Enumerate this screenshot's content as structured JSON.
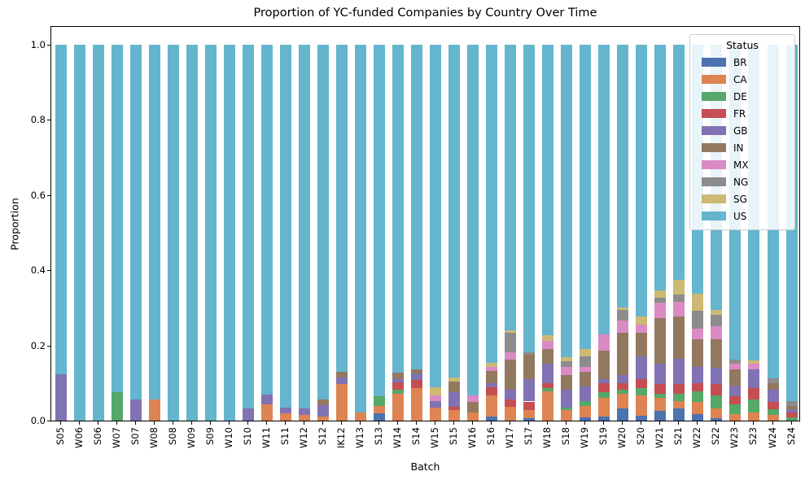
{
  "title": "Proportion of YC-funded Companies by Country Over Time",
  "axes": {
    "xlabel": "Batch",
    "ylabel": "Proportion",
    "yticks": [
      "0.0",
      "0.2",
      "0.4",
      "0.6",
      "0.8",
      "1.0"
    ]
  },
  "legend": {
    "title": "Status",
    "position": "upper right",
    "entries": [
      {
        "label": "BR",
        "color": "#4C72B0"
      },
      {
        "label": "CA",
        "color": "#DD8452"
      },
      {
        "label": "DE",
        "color": "#55A868"
      },
      {
        "label": "FR",
        "color": "#C44E52"
      },
      {
        "label": "GB",
        "color": "#8172B3"
      },
      {
        "label": "IN",
        "color": "#937860"
      },
      {
        "label": "MX",
        "color": "#DA8BC3"
      },
      {
        "label": "NG",
        "color": "#8C8C8C"
      },
      {
        "label": "SG",
        "color": "#CCB974"
      },
      {
        "label": "US",
        "color": "#64B5CD"
      }
    ]
  },
  "chart_data": {
    "type": "bar",
    "stacked": true,
    "normalized": true,
    "title": "Proportion of YC-funded Companies by Country Over Time",
    "xlabel": "Batch",
    "ylabel": "Proportion",
    "ylim": [
      0,
      1.05
    ],
    "grid": false,
    "legend_position": "upper right",
    "categories": [
      "S05",
      "W06",
      "S06",
      "W07",
      "S07",
      "W08",
      "S08",
      "W09",
      "S09",
      "W10",
      "S10",
      "W11",
      "S11",
      "W12",
      "S12",
      "IK12",
      "W13",
      "S13",
      "W14",
      "S14",
      "W15",
      "S15",
      "W16",
      "S16",
      "W17",
      "S17",
      "W18",
      "S18",
      "W19",
      "S19",
      "W20",
      "S20",
      "W21",
      "S21",
      "W22",
      "S22",
      "W23",
      "S23",
      "W24",
      "S24"
    ],
    "series": [
      {
        "name": "BR",
        "color": "#4C72B0",
        "values": [
          0,
          0,
          0,
          0,
          0,
          0,
          0,
          0,
          0,
          0,
          0,
          0,
          0,
          0,
          0,
          0,
          0,
          0.019,
          0,
          0,
          0,
          0,
          0,
          0.01,
          0,
          0.007,
          0,
          0,
          0.009,
          0.011,
          0.032,
          0.014,
          0.026,
          0.032,
          0.017,
          0.006,
          0,
          0,
          0,
          0
        ]
      },
      {
        "name": "CA",
        "color": "#DD8452",
        "values": [
          0,
          0,
          0,
          0,
          0,
          0.056,
          0,
          0,
          0,
          0,
          0,
          0.043,
          0.019,
          0.016,
          0.011,
          0.097,
          0.021,
          0.02,
          0.071,
          0.086,
          0.035,
          0.028,
          0.021,
          0.058,
          0.037,
          0.021,
          0.079,
          0.028,
          0.03,
          0.05,
          0.039,
          0.054,
          0.035,
          0.021,
          0.033,
          0.026,
          0.017,
          0.021,
          0.016,
          0
        ]
      },
      {
        "name": "DE",
        "color": "#55A868",
        "values": [
          0,
          0,
          0,
          0.076,
          0,
          0,
          0,
          0,
          0,
          0,
          0,
          0,
          0,
          0,
          0,
          0,
          0,
          0.025,
          0.011,
          0,
          0,
          0,
          0,
          0,
          0,
          0,
          0.008,
          0.007,
          0.014,
          0.014,
          0.011,
          0.018,
          0.01,
          0.018,
          0.029,
          0.036,
          0.026,
          0.036,
          0.014,
          0.009
        ]
      },
      {
        "name": "FR",
        "color": "#C44E52",
        "values": [
          0,
          0,
          0,
          0,
          0,
          0,
          0,
          0,
          0,
          0,
          0,
          0,
          0,
          0,
          0,
          0,
          0,
          0,
          0.02,
          0.022,
          0,
          0.008,
          0,
          0.021,
          0.019,
          0.023,
          0.013,
          0,
          0,
          0.025,
          0.018,
          0.025,
          0.026,
          0.026,
          0.021,
          0.029,
          0.021,
          0.029,
          0.019,
          0.012
        ]
      },
      {
        "name": "GB",
        "color": "#8172B3",
        "values": [
          0.124,
          0,
          0,
          0,
          0.056,
          0,
          0,
          0,
          0,
          0,
          0.032,
          0.026,
          0.016,
          0.017,
          0.031,
          0.018,
          0,
          0,
          0.008,
          0.018,
          0.018,
          0.04,
          0,
          0.01,
          0.026,
          0.06,
          0.051,
          0.047,
          0.038,
          0.011,
          0.022,
          0.061,
          0.054,
          0.068,
          0.044,
          0.043,
          0.029,
          0.05,
          0.033,
          0.009
        ]
      },
      {
        "name": "IN",
        "color": "#937860",
        "values": [
          0,
          0,
          0,
          0,
          0,
          0,
          0,
          0,
          0,
          0,
          0,
          0,
          0,
          0,
          0.014,
          0.014,
          0,
          0,
          0.017,
          0.01,
          0,
          0.029,
          0.029,
          0.034,
          0.08,
          0.065,
          0.039,
          0.04,
          0.04,
          0.076,
          0.112,
          0.062,
          0.122,
          0.112,
          0.072,
          0.076,
          0.043,
          0,
          0.018,
          0.01
        ]
      },
      {
        "name": "MX",
        "color": "#DA8BC3",
        "values": [
          0,
          0,
          0,
          0,
          0,
          0,
          0,
          0,
          0,
          0,
          0,
          0,
          0,
          0,
          0,
          0,
          0,
          0,
          0,
          0,
          0.015,
          0,
          0.018,
          0.011,
          0.021,
          0,
          0.022,
          0.022,
          0.013,
          0.043,
          0.032,
          0.021,
          0.042,
          0.04,
          0.029,
          0.036,
          0.015,
          0.015,
          0,
          0
        ]
      },
      {
        "name": "NG",
        "color": "#8C8C8C",
        "values": [
          0,
          0,
          0,
          0,
          0,
          0,
          0,
          0,
          0,
          0,
          0,
          0,
          0,
          0,
          0,
          0,
          0,
          0,
          0,
          0,
          0,
          0,
          0,
          0,
          0.051,
          0.007,
          0,
          0.014,
          0.028,
          0,
          0.029,
          0,
          0.013,
          0.018,
          0.047,
          0.029,
          0.011,
          0,
          0.013,
          0.012
        ]
      },
      {
        "name": "SG",
        "color": "#CCB974",
        "values": [
          0,
          0,
          0,
          0,
          0,
          0,
          0,
          0,
          0,
          0,
          0,
          0,
          0,
          0,
          0,
          0,
          0,
          0,
          0,
          0,
          0.021,
          0.009,
          0,
          0.01,
          0.007,
          0,
          0.015,
          0.012,
          0.018,
          0,
          0.005,
          0.022,
          0.018,
          0.039,
          0.046,
          0.014,
          0,
          0.009,
          0,
          0
        ]
      },
      {
        "name": "US",
        "color": "#64B5CD",
        "values": [
          0.876,
          1.0,
          1.0,
          0.924,
          0.944,
          0.944,
          1.0,
          1.0,
          1.0,
          1.0,
          0.968,
          0.931,
          0.965,
          0.967,
          0.944,
          0.871,
          0.979,
          0.936,
          0.873,
          0.864,
          0.911,
          0.886,
          0.932,
          0.846,
          0.759,
          0.817,
          0.773,
          0.83,
          0.81,
          0.77,
          0.7,
          0.723,
          0.654,
          0.626,
          0.662,
          0.705,
          0.838,
          0.84,
          0.887,
          0.948
        ]
      }
    ]
  }
}
